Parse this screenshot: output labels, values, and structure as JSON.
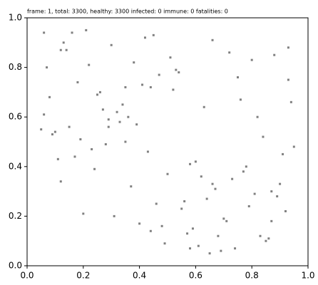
{
  "chart_data": {
    "type": "scatter",
    "title": "frame: 1, total: 3300, healthy: 3300 infected: 0 immune: 0 fatalities: 0",
    "color": "#808080",
    "x": [
      0.12,
      0.47,
      0.83,
      0.29,
      0.66,
      0.91,
      0.08,
      0.55,
      0.38,
      0.74,
      0.19,
      0.62,
      0.93,
      0.44,
      0.27,
      0.81,
      0.06,
      0.58,
      0.35,
      0.71,
      0.15,
      0.88,
      0.49,
      0.23,
      0.67,
      0.94,
      0.31,
      0.53,
      0.09,
      0.77,
      0.42,
      0.86,
      0.18,
      0.64,
      0.36,
      0.72,
      0.11,
      0.59,
      0.25,
      0.84,
      0.46,
      0.07,
      0.69,
      0.33,
      0.9,
      0.52,
      0.21,
      0.78,
      0.4,
      0.63,
      0.14,
      0.87,
      0.28,
      0.57,
      0.75,
      0.05,
      0.45,
      0.92,
      0.34,
      0.61,
      0.17,
      0.8,
      0.5,
      0.26,
      0.7,
      0.39,
      0.85,
      0.13,
      0.56,
      0.32,
      0.95,
      0.48,
      0.22,
      0.73,
      0.41,
      0.65,
      0.1,
      0.89,
      0.3,
      0.6,
      0.76,
      0.2,
      0.54,
      0.37,
      0.82,
      0.16,
      0.68,
      0.43,
      0.93,
      0.24,
      0.51,
      0.79,
      0.06,
      0.58,
      0.35,
      0.87,
      0.44,
      0.12,
      0.66,
      0.29
    ],
    "values": [
      0.34,
      0.77,
      0.12,
      0.59,
      0.91,
      0.45,
      0.68,
      0.23,
      0.82,
      0.07,
      0.51,
      0.36,
      0.88,
      0.14,
      0.63,
      0.29,
      0.94,
      0.41,
      0.72,
      0.18,
      0.56,
      0.85,
      0.09,
      0.47,
      0.31,
      0.66,
      0.2,
      0.79,
      0.53,
      0.38,
      0.92,
      0.11,
      0.74,
      0.27,
      0.6,
      0.86,
      0.43,
      0.15,
      0.69,
      0.52,
      0.25,
      0.8,
      0.06,
      0.58,
      0.33,
      0.71,
      0.95,
      0.4,
      0.17,
      0.64,
      0.87,
      0.3,
      0.49,
      0.13,
      0.76,
      0.55,
      0.93,
      0.22,
      0.65,
      0.08,
      0.44,
      0.83,
      0.37,
      0.7,
      0.19,
      0.57,
      0.1,
      0.9,
      0.26,
      0.62,
      0.48,
      0.16,
      0.81,
      0.35,
      0.73,
      0.05,
      0.54,
      0.28,
      0.89,
      0.42,
      0.67,
      0.21,
      0.78,
      0.32,
      0.6,
      0.94,
      0.12,
      0.46,
      0.75,
      0.39,
      0.84,
      0.24,
      0.61,
      0.07,
      0.5,
      0.18,
      0.72,
      0.87,
      0.33,
      0.56
    ],
    "xlim": [
      0,
      1
    ],
    "ylim": [
      0,
      1
    ],
    "xticks": [
      {
        "value": 0,
        "label": "0.0"
      },
      0.2,
      0.4,
      0.6,
      0.8,
      {
        "value": 1,
        "label": "1.0"
      }
    ],
    "yticks": [
      {
        "value": 0,
        "label": "0.0"
      },
      0.2,
      0.4,
      0.6,
      0.8,
      {
        "value": 1,
        "label": "1.0"
      }
    ],
    "grid": false
  }
}
